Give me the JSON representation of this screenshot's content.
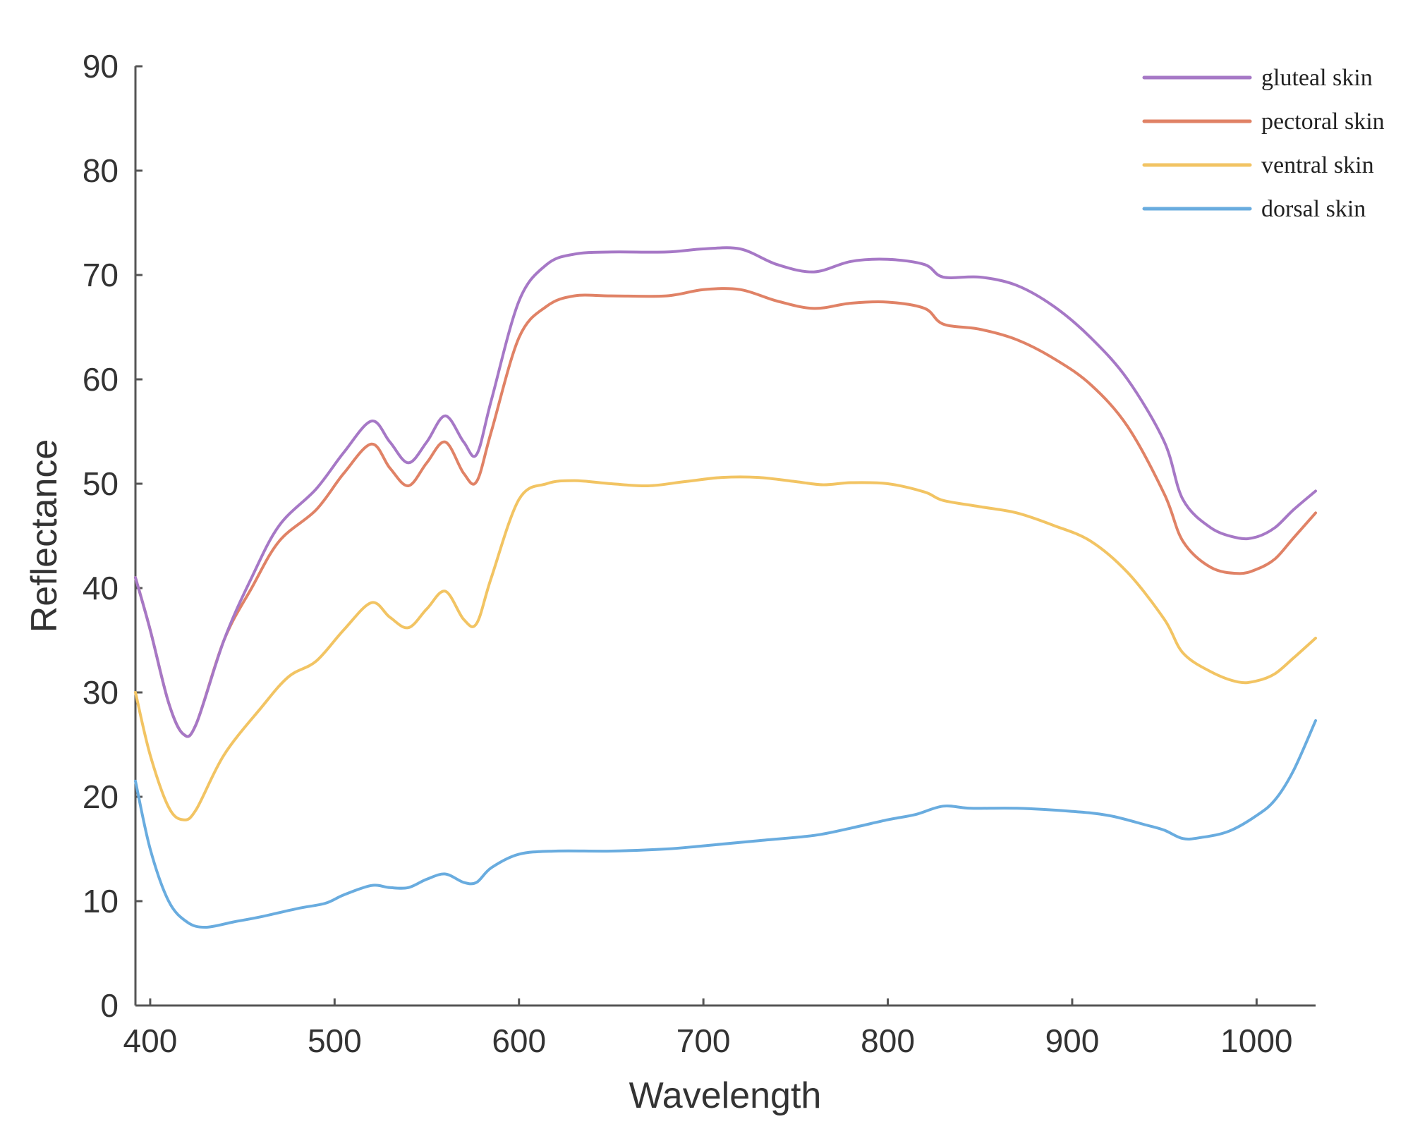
{
  "chart_data": {
    "type": "line",
    "title": "",
    "xlabel": "Wavelength",
    "ylabel": "Reflectance",
    "xlim": [
      392,
      1032
    ],
    "ylim": [
      0,
      90
    ],
    "x_ticks": [
      400,
      500,
      600,
      700,
      800,
      900,
      1000
    ],
    "y_ticks": [
      0,
      10,
      20,
      30,
      40,
      50,
      60,
      70,
      80,
      90
    ],
    "grid": false,
    "legend_position": "top-right",
    "series": [
      {
        "name": "gluteal skin",
        "color": "#a678c6",
        "points": [
          [
            392,
            41
          ],
          [
            400,
            36
          ],
          [
            410,
            29
          ],
          [
            418,
            26
          ],
          [
            425,
            27
          ],
          [
            440,
            35
          ],
          [
            455,
            41
          ],
          [
            470,
            46
          ],
          [
            490,
            49.5
          ],
          [
            505,
            53
          ],
          [
            520,
            56
          ],
          [
            530,
            54
          ],
          [
            540,
            52
          ],
          [
            550,
            54
          ],
          [
            560,
            56.5
          ],
          [
            570,
            54
          ],
          [
            577,
            52.8
          ],
          [
            585,
            58
          ],
          [
            600,
            67.5
          ],
          [
            615,
            71
          ],
          [
            630,
            72
          ],
          [
            650,
            72.2
          ],
          [
            680,
            72.2
          ],
          [
            700,
            72.5
          ],
          [
            720,
            72.5
          ],
          [
            740,
            71
          ],
          [
            760,
            70.3
          ],
          [
            780,
            71.3
          ],
          [
            800,
            71.5
          ],
          [
            820,
            71
          ],
          [
            830,
            69.8
          ],
          [
            850,
            69.8
          ],
          [
            870,
            69
          ],
          [
            890,
            67
          ],
          [
            910,
            64
          ],
          [
            930,
            60
          ],
          [
            950,
            54
          ],
          [
            960,
            48.5
          ],
          [
            975,
            45.8
          ],
          [
            990,
            44.8
          ],
          [
            1000,
            44.9
          ],
          [
            1010,
            45.8
          ],
          [
            1020,
            47.5
          ],
          [
            1032,
            49.3
          ]
        ]
      },
      {
        "name": "pectoral skin",
        "color": "#e08266",
        "points": [
          [
            392,
            41
          ],
          [
            400,
            36
          ],
          [
            410,
            29
          ],
          [
            418,
            26
          ],
          [
            425,
            27
          ],
          [
            440,
            35
          ],
          [
            455,
            40
          ],
          [
            470,
            44.5
          ],
          [
            490,
            47.5
          ],
          [
            505,
            51
          ],
          [
            520,
            53.8
          ],
          [
            530,
            51.5
          ],
          [
            540,
            49.8
          ],
          [
            550,
            52
          ],
          [
            560,
            54
          ],
          [
            570,
            51
          ],
          [
            577,
            50.2
          ],
          [
            585,
            55
          ],
          [
            600,
            64
          ],
          [
            615,
            67
          ],
          [
            630,
            68
          ],
          [
            650,
            68
          ],
          [
            680,
            68
          ],
          [
            700,
            68.6
          ],
          [
            720,
            68.6
          ],
          [
            740,
            67.5
          ],
          [
            760,
            66.8
          ],
          [
            780,
            67.3
          ],
          [
            800,
            67.4
          ],
          [
            820,
            66.8
          ],
          [
            830,
            65.3
          ],
          [
            850,
            64.8
          ],
          [
            870,
            63.8
          ],
          [
            890,
            62
          ],
          [
            910,
            59.5
          ],
          [
            930,
            55.5
          ],
          [
            950,
            49
          ],
          [
            960,
            44.5
          ],
          [
            975,
            42
          ],
          [
            990,
            41.4
          ],
          [
            1000,
            41.8
          ],
          [
            1010,
            42.8
          ],
          [
            1020,
            44.8
          ],
          [
            1032,
            47.2
          ]
        ]
      },
      {
        "name": "ventral skin",
        "color": "#f2c463",
        "points": [
          [
            392,
            30
          ],
          [
            400,
            24
          ],
          [
            410,
            19
          ],
          [
            418,
            17.8
          ],
          [
            425,
            18.8
          ],
          [
            440,
            24
          ],
          [
            460,
            28.5
          ],
          [
            475,
            31.5
          ],
          [
            490,
            33
          ],
          [
            505,
            36
          ],
          [
            520,
            38.6
          ],
          [
            530,
            37.2
          ],
          [
            540,
            36.2
          ],
          [
            550,
            38
          ],
          [
            560,
            39.7
          ],
          [
            570,
            37
          ],
          [
            577,
            36.6
          ],
          [
            585,
            41
          ],
          [
            600,
            48.5
          ],
          [
            615,
            50
          ],
          [
            630,
            50.3
          ],
          [
            650,
            50
          ],
          [
            670,
            49.8
          ],
          [
            690,
            50.2
          ],
          [
            710,
            50.6
          ],
          [
            730,
            50.6
          ],
          [
            750,
            50.2
          ],
          [
            765,
            49.9
          ],
          [
            780,
            50.1
          ],
          [
            800,
            50
          ],
          [
            820,
            49.2
          ],
          [
            830,
            48.4
          ],
          [
            850,
            47.8
          ],
          [
            870,
            47.2
          ],
          [
            890,
            46
          ],
          [
            910,
            44.5
          ],
          [
            930,
            41.5
          ],
          [
            950,
            37
          ],
          [
            960,
            33.8
          ],
          [
            975,
            32
          ],
          [
            990,
            31
          ],
          [
            1000,
            31.1
          ],
          [
            1010,
            31.8
          ],
          [
            1020,
            33.3
          ],
          [
            1032,
            35.2
          ]
        ]
      },
      {
        "name": "dorsal skin",
        "color": "#69acdf",
        "points": [
          [
            392,
            21.5
          ],
          [
            400,
            15
          ],
          [
            410,
            10
          ],
          [
            420,
            8
          ],
          [
            430,
            7.5
          ],
          [
            445,
            8
          ],
          [
            460,
            8.5
          ],
          [
            480,
            9.3
          ],
          [
            495,
            9.8
          ],
          [
            505,
            10.6
          ],
          [
            520,
            11.5
          ],
          [
            530,
            11.3
          ],
          [
            540,
            11.3
          ],
          [
            550,
            12.1
          ],
          [
            560,
            12.6
          ],
          [
            570,
            11.8
          ],
          [
            577,
            11.8
          ],
          [
            585,
            13.2
          ],
          [
            600,
            14.5
          ],
          [
            620,
            14.8
          ],
          [
            650,
            14.8
          ],
          [
            680,
            15
          ],
          [
            700,
            15.3
          ],
          [
            730,
            15.8
          ],
          [
            760,
            16.3
          ],
          [
            780,
            17
          ],
          [
            800,
            17.8
          ],
          [
            815,
            18.3
          ],
          [
            830,
            19.1
          ],
          [
            845,
            18.9
          ],
          [
            870,
            18.9
          ],
          [
            900,
            18.6
          ],
          [
            920,
            18.2
          ],
          [
            940,
            17.3
          ],
          [
            950,
            16.8
          ],
          [
            960,
            16
          ],
          [
            970,
            16.1
          ],
          [
            985,
            16.7
          ],
          [
            1000,
            18.2
          ],
          [
            1010,
            19.7
          ],
          [
            1020,
            22.5
          ],
          [
            1032,
            27.3
          ]
        ]
      }
    ]
  }
}
